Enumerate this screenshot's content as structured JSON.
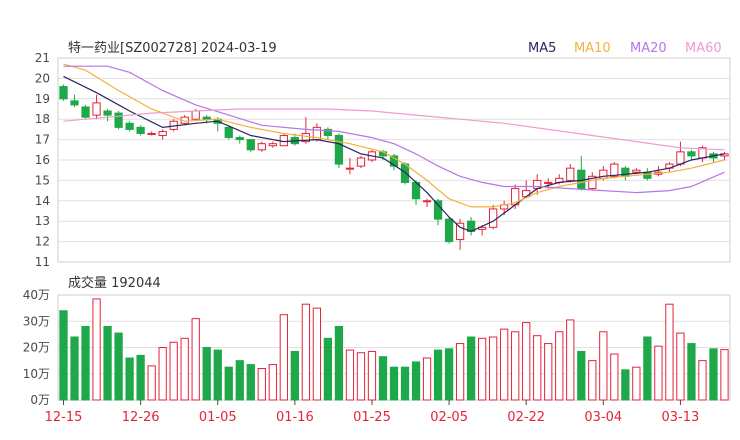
{
  "header": {
    "title": "特一药业[SZ002728] 2024-03-19",
    "legend": [
      {
        "label": "MA5",
        "color": "#2a2560"
      },
      {
        "label": "MA10",
        "color": "#f4b13e"
      },
      {
        "label": "MA20",
        "color": "#b477e4"
      },
      {
        "label": "MA60",
        "color": "#ef9ad0"
      }
    ]
  },
  "colors": {
    "up": "#e3243a",
    "down": "#1ea84a",
    "grid": "#e2e2e2",
    "axis": "#4a4a4a",
    "date": "#e3243a"
  },
  "volume_header": {
    "label": "成交量 192044"
  },
  "chart_data": [
    {
      "type": "candlestick",
      "yticks": [
        11,
        12,
        13,
        14,
        15,
        16,
        17,
        18,
        19,
        20,
        21
      ],
      "ylim": [
        11,
        21
      ],
      "xtick_labels": [
        {
          "index": 0,
          "label": "12-15"
        },
        {
          "index": 7,
          "label": "12-26"
        },
        {
          "index": 14,
          "label": "01-05"
        },
        {
          "index": 21,
          "label": "01-16"
        },
        {
          "index": 28,
          "label": "01-25"
        },
        {
          "index": 35,
          "label": "02-05"
        },
        {
          "index": 42,
          "label": "02-22"
        },
        {
          "index": 49,
          "label": "03-04"
        },
        {
          "index": 56,
          "label": "03-13"
        }
      ],
      "candles": [
        [
          19.6,
          19.0,
          19.7,
          18.9
        ],
        [
          18.9,
          18.7,
          19.2,
          18.6
        ],
        [
          18.6,
          18.1,
          18.7,
          18.0
        ],
        [
          18.2,
          18.8,
          19.2,
          18.0
        ],
        [
          18.4,
          18.2,
          18.5,
          17.9
        ],
        [
          18.3,
          17.6,
          18.4,
          17.5
        ],
        [
          17.8,
          17.5,
          17.9,
          17.4
        ],
        [
          17.6,
          17.3,
          17.7,
          17.2
        ],
        [
          17.3,
          17.3,
          17.4,
          17.2
        ],
        [
          17.2,
          17.4,
          17.5,
          17.0
        ],
        [
          17.5,
          17.9,
          18.0,
          17.4
        ],
        [
          17.8,
          18.1,
          18.2,
          17.7
        ],
        [
          18.0,
          18.4,
          18.5,
          17.9
        ],
        [
          18.1,
          18.0,
          18.2,
          17.8
        ],
        [
          18.0,
          17.8,
          18.1,
          17.4
        ],
        [
          17.6,
          17.1,
          17.7,
          17.0
        ],
        [
          17.1,
          17.0,
          17.2,
          16.8
        ],
        [
          17.0,
          16.5,
          17.0,
          16.4
        ],
        [
          16.5,
          16.8,
          16.9,
          16.4
        ],
        [
          16.7,
          16.8,
          16.9,
          16.6
        ],
        [
          16.7,
          17.2,
          17.3,
          16.7
        ],
        [
          17.1,
          16.8,
          17.3,
          16.7
        ],
        [
          16.9,
          17.3,
          18.1,
          16.8
        ],
        [
          17.0,
          17.6,
          17.8,
          16.9
        ],
        [
          17.5,
          17.2,
          17.6,
          17.0
        ],
        [
          17.2,
          15.8,
          17.3,
          15.6
        ],
        [
          15.6,
          15.6,
          16.1,
          15.3
        ],
        [
          15.7,
          16.1,
          16.2,
          15.6
        ],
        [
          16.0,
          16.4,
          16.5,
          15.9
        ],
        [
          16.4,
          16.2,
          16.5,
          16.0
        ],
        [
          16.2,
          15.7,
          16.3,
          15.5
        ],
        [
          15.8,
          14.9,
          15.9,
          14.8
        ],
        [
          14.9,
          14.1,
          15.0,
          13.8
        ],
        [
          14.0,
          14.0,
          14.1,
          13.7
        ],
        [
          14.0,
          13.1,
          14.1,
          12.8
        ],
        [
          13.1,
          12.0,
          13.2,
          11.9
        ],
        [
          12.1,
          12.9,
          13.1,
          11.6
        ],
        [
          13.0,
          12.5,
          13.2,
          12.3
        ],
        [
          12.6,
          12.7,
          12.8,
          12.3
        ],
        [
          12.7,
          13.6,
          13.8,
          12.6
        ],
        [
          13.6,
          13.8,
          14.0,
          13.3
        ],
        [
          13.8,
          14.6,
          14.8,
          13.6
        ],
        [
          14.2,
          14.5,
          15.0,
          14.2
        ],
        [
          14.6,
          15.0,
          15.3,
          14.3
        ],
        [
          14.9,
          14.9,
          15.1,
          14.6
        ],
        [
          14.9,
          15.1,
          15.3,
          14.8
        ],
        [
          15.0,
          15.6,
          15.8,
          14.9
        ],
        [
          15.5,
          14.6,
          16.2,
          14.5
        ],
        [
          14.6,
          15.2,
          15.4,
          14.5
        ],
        [
          15.1,
          15.5,
          15.7,
          15.0
        ],
        [
          15.2,
          15.8,
          15.9,
          15.1
        ],
        [
          15.6,
          15.2,
          15.7,
          15.0
        ],
        [
          15.4,
          15.5,
          15.6,
          15.3
        ],
        [
          15.4,
          15.1,
          15.6,
          15.0
        ],
        [
          15.3,
          15.4,
          15.7,
          15.2
        ],
        [
          15.6,
          15.8,
          15.9,
          15.4
        ],
        [
          15.8,
          16.4,
          16.9,
          15.7
        ],
        [
          16.4,
          16.2,
          16.5,
          16.0
        ],
        [
          16.1,
          16.6,
          16.7,
          15.9
        ],
        [
          16.3,
          16.1,
          16.4,
          15.9
        ],
        [
          16.2,
          16.3,
          16.4,
          16.0
        ]
      ],
      "ma_series": [
        {
          "name": "MA5",
          "color": "#2a2560",
          "values": [
            [
              0,
              20.1
            ],
            [
              3,
              19.3
            ],
            [
              6,
              18.4
            ],
            [
              9,
              17.6
            ],
            [
              12,
              17.8
            ],
            [
              14,
              17.9
            ],
            [
              17,
              17.2
            ],
            [
              20,
              16.9
            ],
            [
              23,
              17.0
            ],
            [
              25,
              16.8
            ],
            [
              27,
              16.3
            ],
            [
              29,
              16.1
            ],
            [
              31,
              15.4
            ],
            [
              33,
              14.4
            ],
            [
              35,
              13.2
            ],
            [
              36,
              12.7
            ],
            [
              37,
              12.5
            ],
            [
              39,
              13.0
            ],
            [
              41,
              13.8
            ],
            [
              43,
              14.6
            ],
            [
              45,
              14.9
            ],
            [
              47,
              15.0
            ],
            [
              49,
              15.2
            ],
            [
              51,
              15.3
            ],
            [
              53,
              15.4
            ],
            [
              55,
              15.6
            ],
            [
              57,
              16.0
            ],
            [
              60,
              16.3
            ]
          ]
        },
        {
          "name": "MA10",
          "color": "#f4b13e",
          "values": [
            [
              0,
              20.7
            ],
            [
              2,
              20.4
            ],
            [
              5,
              19.4
            ],
            [
              8,
              18.5
            ],
            [
              11,
              17.9
            ],
            [
              14,
              18.0
            ],
            [
              17,
              17.6
            ],
            [
              20,
              17.3
            ],
            [
              23,
              17.1
            ],
            [
              26,
              16.8
            ],
            [
              29,
              16.4
            ],
            [
              31,
              15.8
            ],
            [
              33,
              15.0
            ],
            [
              35,
              14.1
            ],
            [
              37,
              13.7
            ],
            [
              39,
              13.7
            ],
            [
              41,
              13.9
            ],
            [
              43,
              14.4
            ],
            [
              45,
              14.7
            ],
            [
              47,
              14.9
            ],
            [
              49,
              15.1
            ],
            [
              51,
              15.2
            ],
            [
              53,
              15.3
            ],
            [
              55,
              15.4
            ],
            [
              57,
              15.6
            ],
            [
              60,
              16.0
            ]
          ]
        },
        {
          "name": "MA20",
          "color": "#b477e4",
          "values": [
            [
              0,
              20.6
            ],
            [
              4,
              20.6
            ],
            [
              6,
              20.3
            ],
            [
              9,
              19.4
            ],
            [
              12,
              18.7
            ],
            [
              15,
              18.2
            ],
            [
              18,
              17.7
            ],
            [
              22,
              17.5
            ],
            [
              25,
              17.4
            ],
            [
              28,
              17.1
            ],
            [
              30,
              16.8
            ],
            [
              32,
              16.3
            ],
            [
              34,
              15.7
            ],
            [
              36,
              15.2
            ],
            [
              38,
              14.9
            ],
            [
              40,
              14.7
            ],
            [
              43,
              14.7
            ],
            [
              46,
              14.6
            ],
            [
              49,
              14.5
            ],
            [
              52,
              14.4
            ],
            [
              55,
              14.5
            ],
            [
              57,
              14.7
            ],
            [
              60,
              15.4
            ]
          ]
        },
        {
          "name": "MA60",
          "color": "#ef9ad0",
          "values": [
            [
              0,
              17.9
            ],
            [
              4,
              18.1
            ],
            [
              8,
              18.3
            ],
            [
              12,
              18.4
            ],
            [
              16,
              18.5
            ],
            [
              20,
              18.5
            ],
            [
              24,
              18.5
            ],
            [
              28,
              18.4
            ],
            [
              32,
              18.2
            ],
            [
              36,
              18.0
            ],
            [
              40,
              17.8
            ],
            [
              44,
              17.5
            ],
            [
              48,
              17.2
            ],
            [
              52,
              16.9
            ],
            [
              56,
              16.6
            ],
            [
              60,
              16.5
            ]
          ]
        }
      ]
    },
    {
      "type": "bar",
      "ytick_labels": [
        "0万",
        "10万",
        "20万",
        "30万",
        "40万"
      ],
      "ylim": [
        0,
        40
      ],
      "unit": "万",
      "values": [
        34,
        24,
        28,
        38.5,
        28,
        25.5,
        16,
        17,
        13,
        20,
        22,
        23.5,
        31,
        20,
        19,
        12.5,
        15,
        13.5,
        12,
        13.5,
        32.5,
        18.5,
        36.5,
        35,
        23.5,
        28,
        19,
        18,
        18.5,
        16.5,
        12.5,
        12.5,
        14.5,
        16,
        19,
        19.5,
        21.5,
        24,
        23.5,
        24,
        27,
        26,
        29.5,
        24.5,
        21.5,
        26,
        30.5,
        18.5,
        15,
        26,
        17.5,
        11.5,
        12.5,
        24,
        20.5,
        36.5,
        25.5,
        21.5,
        15,
        19.5,
        19.2
      ]
    }
  ]
}
